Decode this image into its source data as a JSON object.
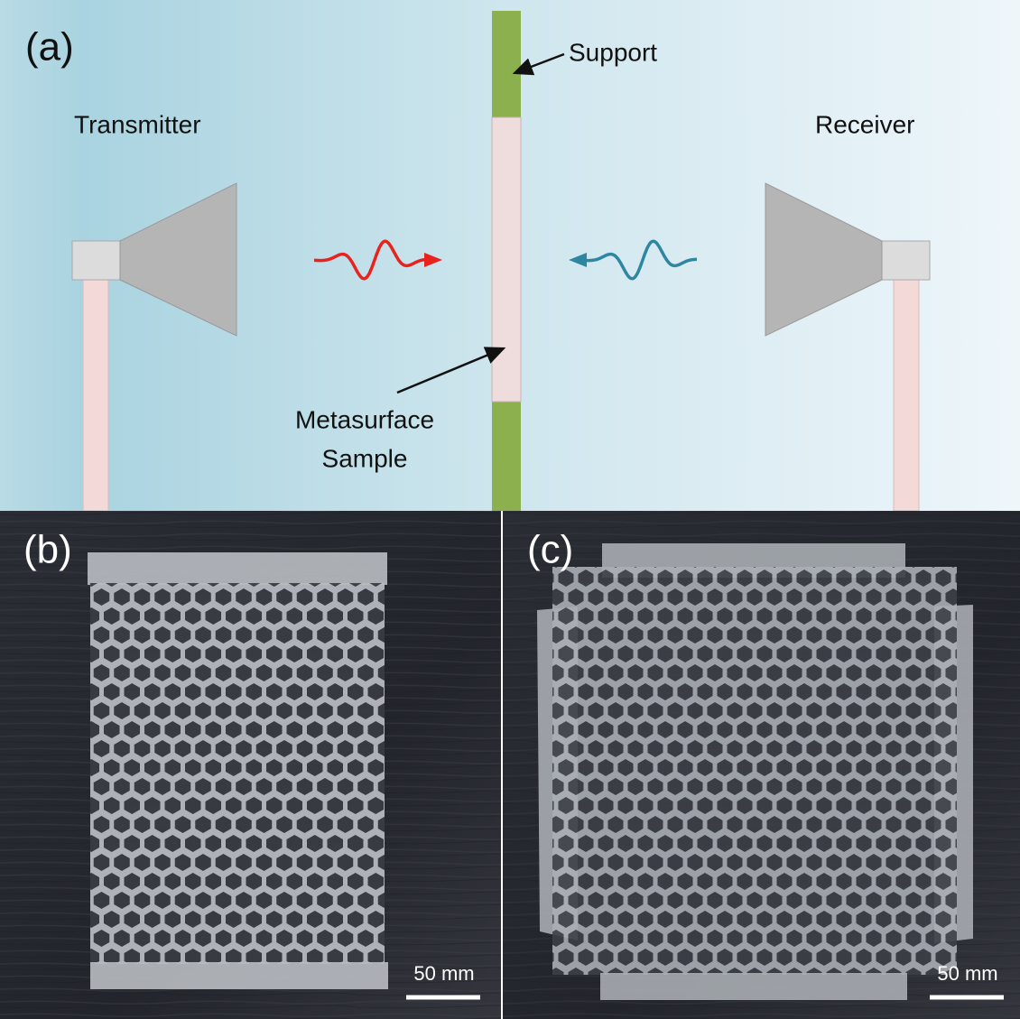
{
  "panel_a": {
    "label": "(a)",
    "transmitter": "Transmitter",
    "receiver": "Receiver",
    "support": "Support",
    "sample_label": [
      "Metasurface",
      "Sample"
    ]
  },
  "panel_b": {
    "label": "(b)",
    "scale_bar": "50 mm"
  },
  "panel_c": {
    "label": "(c)",
    "scale_bar": "50 mm"
  }
}
